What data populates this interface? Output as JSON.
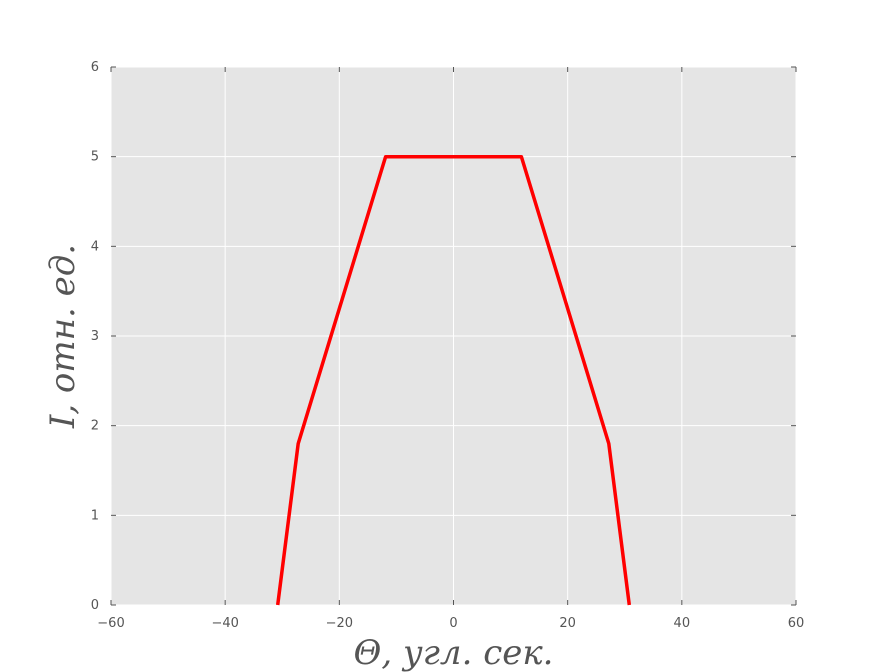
{
  "chart_data": {
    "type": "line",
    "title": "",
    "xlabel": "Θ, угл. сек.",
    "ylabel": "I, отн. ед.",
    "xlim": [
      -60,
      60
    ],
    "ylim": [
      0,
      6
    ],
    "xticks": [
      -60,
      -40,
      -20,
      0,
      20,
      40,
      60
    ],
    "yticks": [
      0,
      1,
      2,
      3,
      4,
      5,
      6
    ],
    "xtick_labels": [
      "−60",
      "−40",
      "−20",
      "0",
      "20",
      "40",
      "60"
    ],
    "ytick_labels": [
      "0",
      "1",
      "2",
      "3",
      "4",
      "5",
      "6"
    ],
    "grid": true,
    "legend": "none",
    "series": [
      {
        "color": "#ff0000",
        "x": [
          -30.8,
          -27.2,
          -11.9,
          11.9,
          27.2,
          30.8
        ],
        "y": [
          0,
          1.8,
          5,
          5,
          1.8,
          0
        ]
      }
    ],
    "colors": {
      "plot_background": "#e5e5e5",
      "grid": "#ffffff",
      "line": "#ff0000"
    }
  }
}
